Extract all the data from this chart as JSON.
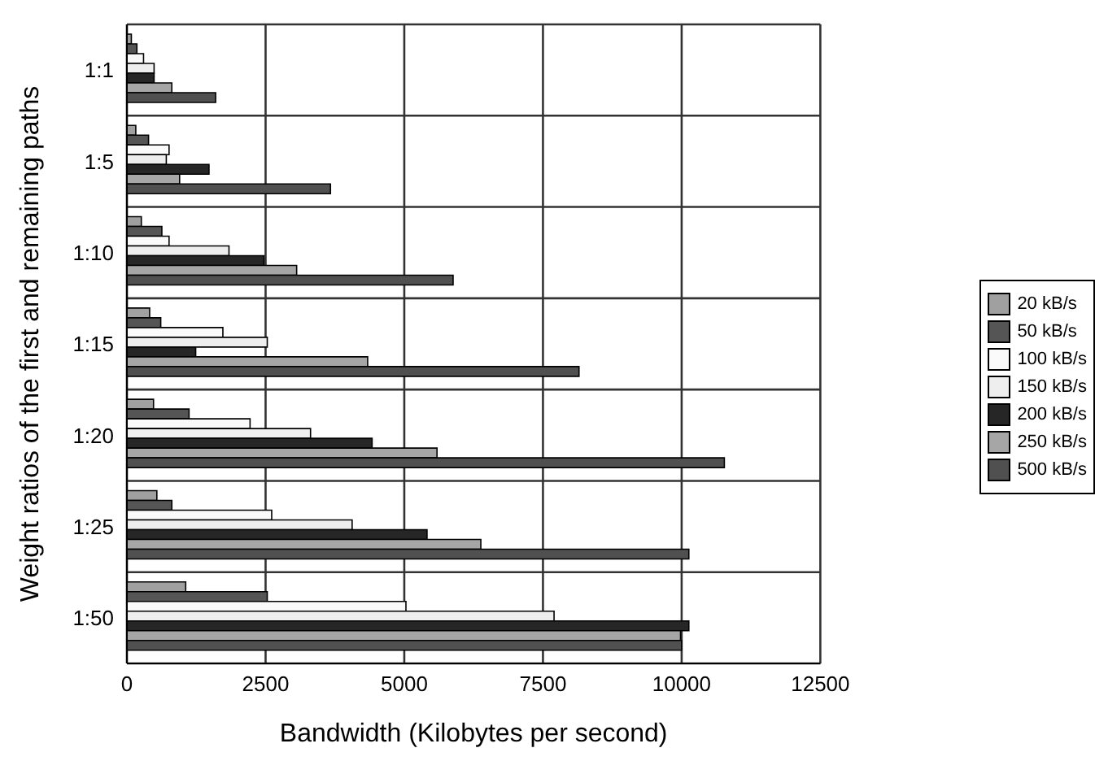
{
  "chart_data": {
    "type": "bar",
    "orientation": "horizontal",
    "xlabel": "Bandwidth (Kilobytes per second)",
    "ylabel": "Weight ratios of the first and remaining paths",
    "categories": [
      "1:1",
      "1:5",
      "1:10",
      "1:15",
      "1:20",
      "1:25",
      "1:50"
    ],
    "series": [
      {
        "name": "20 kB/s",
        "color": "#a0a0a0",
        "values": [
          80,
          160,
          260,
          410,
          480,
          540,
          1060
        ]
      },
      {
        "name": "50 kB/s",
        "color": "#555555",
        "values": [
          180,
          390,
          630,
          610,
          1120,
          810,
          2530
        ]
      },
      {
        "name": "100 kB/s",
        "color": "#fafafa",
        "values": [
          300,
          760,
          760,
          1730,
          2220,
          2610,
          5030
        ]
      },
      {
        "name": "150 kB/s",
        "color": "#eeeeee",
        "values": [
          490,
          710,
          1840,
          2530,
          3310,
          4060,
          7700
        ]
      },
      {
        "name": "200 kB/s",
        "color": "#262626",
        "values": [
          490,
          1480,
          2470,
          1240,
          4420,
          5410,
          10130
        ]
      },
      {
        "name": "250 kB/s",
        "color": "#a6a6a6",
        "values": [
          810,
          950,
          3060,
          4340,
          5590,
          6380,
          9980
        ]
      },
      {
        "name": "500 kB/s",
        "color": "#505050",
        "values": [
          1600,
          3670,
          5880,
          8150,
          10770,
          10130,
          10000
        ]
      }
    ],
    "xlim": [
      0,
      12500
    ],
    "xticks": [
      0,
      2500,
      5000,
      7500,
      10000,
      12500
    ],
    "grid": true,
    "legend": "right"
  }
}
